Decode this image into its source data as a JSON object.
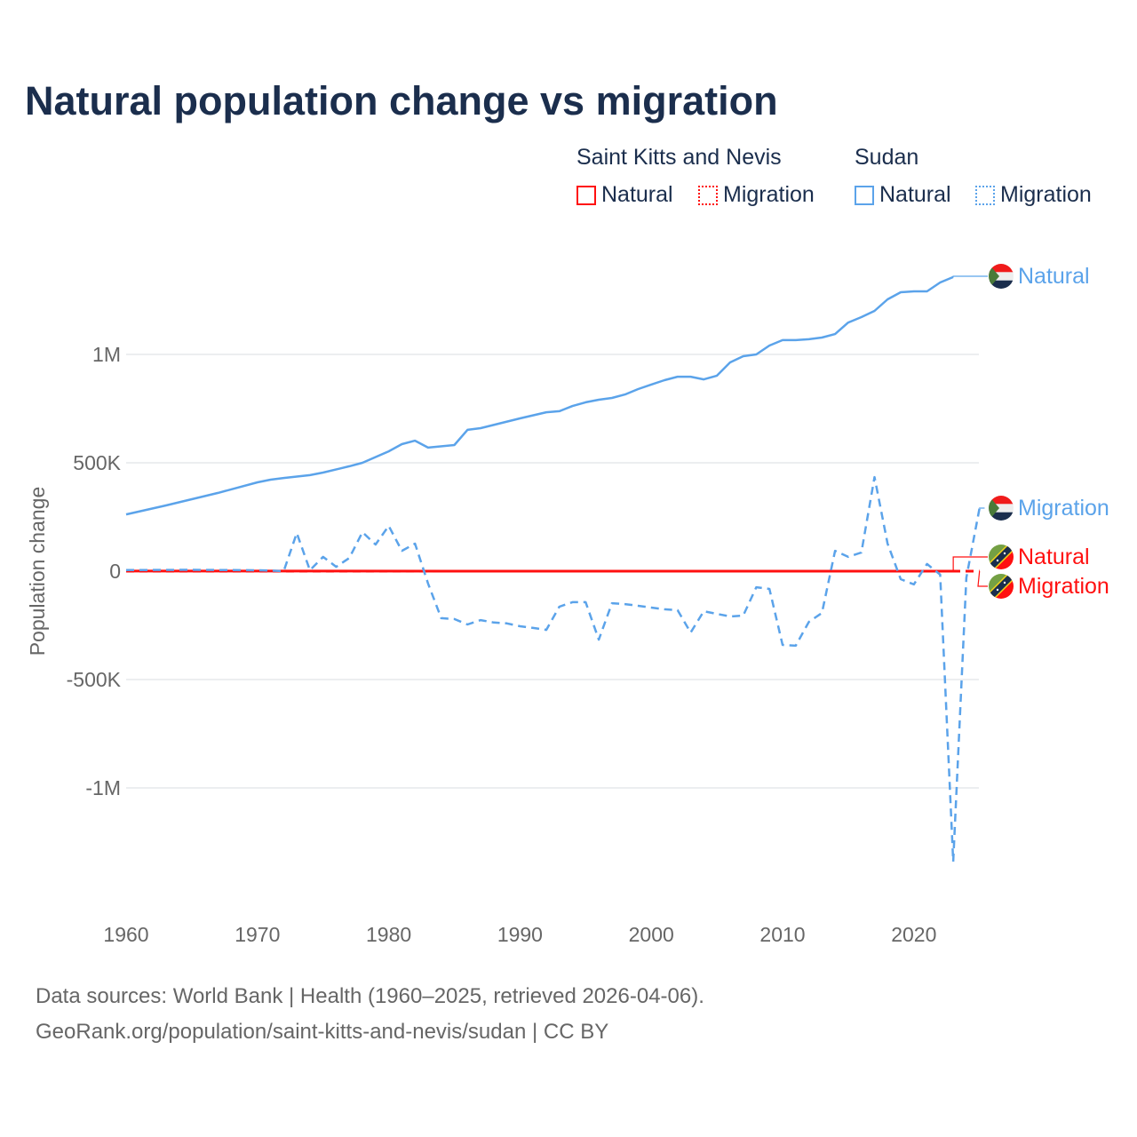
{
  "title": "Natural population change vs migration",
  "legend": {
    "groups": [
      {
        "name": "Saint Kitts and Nevis",
        "color": "#ff1010",
        "items": [
          "Natural",
          "Migration"
        ]
      },
      {
        "name": "Sudan",
        "color": "#5ba3ea",
        "items": [
          "Natural",
          "Migration"
        ]
      }
    ]
  },
  "footer": {
    "line1": "Data sources: World Bank | Health (1960–2025, retrieved 2026-04-06).",
    "line2": "GeoRank.org/population/saint-kitts-and-nevis/sudan | CC BY"
  },
  "chart_data": {
    "type": "line",
    "title": "Natural population change vs migration",
    "xlabel": "",
    "ylabel": "Population change",
    "xlim": [
      1960,
      2025
    ],
    "ylim": [
      -1450000,
      1450000
    ],
    "x_ticks": [
      1960,
      1970,
      1980,
      1990,
      2000,
      2010,
      2020
    ],
    "x_tick_labels": [
      "1960",
      "1970",
      "1980",
      "1990",
      "2000",
      "2010",
      "2020"
    ],
    "y_ticks": [
      1000000,
      500000,
      0,
      -500000,
      -1000000
    ],
    "y_tick_labels": [
      "1M",
      "500K",
      "0",
      "-500K",
      "-1M"
    ],
    "grid": true,
    "legend_position": "top-right",
    "series": [
      {
        "name": "Sudan Natural",
        "country": "Sudan",
        "kind": "Natural",
        "color": "#5ba3ea",
        "dash": false,
        "end_label": "Natural",
        "x": [
          1960,
          1963,
          1967,
          1970,
          1971,
          1972,
          1974,
          1975,
          1977,
          1978,
          1980,
          1981,
          1982,
          1983,
          1985,
          1986,
          1987,
          1990,
          1992,
          1993,
          1994,
          1995,
          1996,
          1997,
          1998,
          1999,
          2000,
          2001,
          2002,
          2003,
          2004,
          2005,
          2006,
          2007,
          2008,
          2009,
          2010,
          2011,
          2012,
          2013,
          2014,
          2015,
          2016,
          2017,
          2018,
          2019,
          2020,
          2021,
          2022,
          2023
        ],
        "values": [
          262000,
          303000,
          361000,
          410000,
          422000,
          430000,
          443000,
          455000,
          484000,
          500000,
          553000,
          586000,
          602000,
          570000,
          582000,
          652000,
          660000,
          705000,
          733000,
          738000,
          762000,
          779000,
          791000,
          799000,
          815000,
          840000,
          861000,
          881000,
          897000,
          897000,
          885000,
          902000,
          963000,
          992000,
          1000000,
          1041000,
          1066000,
          1066000,
          1070000,
          1078000,
          1094000,
          1147000,
          1172000,
          1201000,
          1254000,
          1287000,
          1291000,
          1291000,
          1332000,
          1357000
        ]
      },
      {
        "name": "Sudan Migration",
        "country": "Sudan",
        "kind": "Migration",
        "color": "#5ba3ea",
        "dash": true,
        "end_label": "Migration",
        "x": [
          1960,
          1965,
          1970,
          1971,
          1972,
          1973,
          1974,
          1975,
          1976,
          1977,
          1978,
          1979,
          1980,
          1981,
          1982,
          1983,
          1984,
          1985,
          1986,
          1987,
          1988,
          1989,
          1990,
          1991,
          1992,
          1993,
          1994,
          1995,
          1996,
          1997,
          1998,
          1999,
          2000,
          2001,
          2002,
          2003,
          2004,
          2005,
          2006,
          2007,
          2008,
          2009,
          2010,
          2011,
          2012,
          2013,
          2014,
          2015,
          2016,
          2017,
          2018,
          2019,
          2020,
          2021,
          2022,
          2023,
          2024,
          2025
        ],
        "values": [
          5000,
          6000,
          4000,
          3000,
          0,
          176000,
          4000,
          66000,
          20000,
          61000,
          180000,
          123000,
          209000,
          94000,
          127000,
          -57000,
          -217000,
          -221000,
          -246000,
          -226000,
          -237000,
          -241000,
          -254000,
          -262000,
          -271000,
          -164000,
          -143000,
          -143000,
          -316000,
          -148000,
          -152000,
          -160000,
          -168000,
          -176000,
          -180000,
          -283000,
          -185000,
          -197000,
          -209000,
          -205000,
          -74000,
          -82000,
          -340000,
          -344000,
          -234000,
          -193000,
          94000,
          66000,
          86000,
          434000,
          127000,
          -37000,
          -61000,
          33000,
          -16000,
          -1340000,
          -30000,
          290000
        ]
      },
      {
        "name": "Saint Kitts and Nevis Natural",
        "country": "Saint Kitts and Nevis",
        "kind": "Natural",
        "color": "#ff1010",
        "dash": false,
        "end_label": "Natural",
        "x": [
          1960,
          2023
        ],
        "values": [
          300,
          200
        ]
      },
      {
        "name": "Saint Kitts and Nevis Migration",
        "country": "Saint Kitts and Nevis",
        "kind": "Migration",
        "color": "#ff1010",
        "dash": true,
        "end_label": "Migration",
        "x": [
          1960,
          2025
        ],
        "values": [
          -200,
          -100
        ]
      }
    ]
  }
}
